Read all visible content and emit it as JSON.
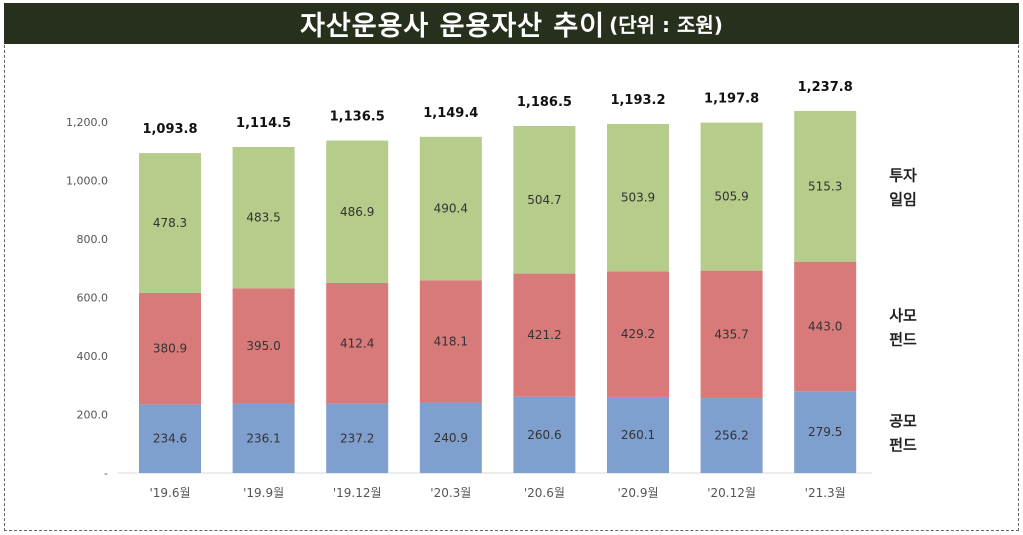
{
  "title": "자산운용사 운용자산 추이",
  "unit": "(단위 : 조원)",
  "chart_data": {
    "type": "bar",
    "stacked": true,
    "categories": [
      "'19.6월",
      "'19.9월",
      "'19.12월",
      "'20.3월",
      "'20.6월",
      "'20.9월",
      "'20.12월",
      "'21.3월"
    ],
    "series": [
      {
        "name": "공모\n펀드",
        "legend_lines": [
          "공모",
          "펀드"
        ],
        "color": "#7fa0cf",
        "values": [
          234.6,
          236.1,
          237.2,
          240.9,
          260.6,
          260.1,
          256.2,
          279.5
        ]
      },
      {
        "name": "사모\n펀드",
        "legend_lines": [
          "사모",
          "펀드"
        ],
        "color": "#d97a7a",
        "values": [
          380.9,
          395.0,
          412.4,
          418.1,
          421.2,
          429.2,
          435.7,
          443.0
        ]
      },
      {
        "name": "투자\n일임",
        "legend_lines": [
          "투자",
          "일임"
        ],
        "color": "#b5cc8a",
        "values": [
          478.3,
          483.5,
          486.9,
          490.4,
          504.7,
          503.9,
          505.9,
          515.3
        ]
      }
    ],
    "totals": [
      "1,093.8",
      "1,114.5",
      "1,136.5",
      "1,149.4",
      "1,186.5",
      "1,193.2",
      "1,197.8",
      "1,237.8"
    ],
    "y_ticks": [
      "-",
      "200.0",
      "400.0",
      "600.0",
      "800.0",
      "1,000.0",
      "1,200.0"
    ],
    "ylim": [
      0,
      1200
    ],
    "grid": false,
    "legend_position": "right"
  }
}
